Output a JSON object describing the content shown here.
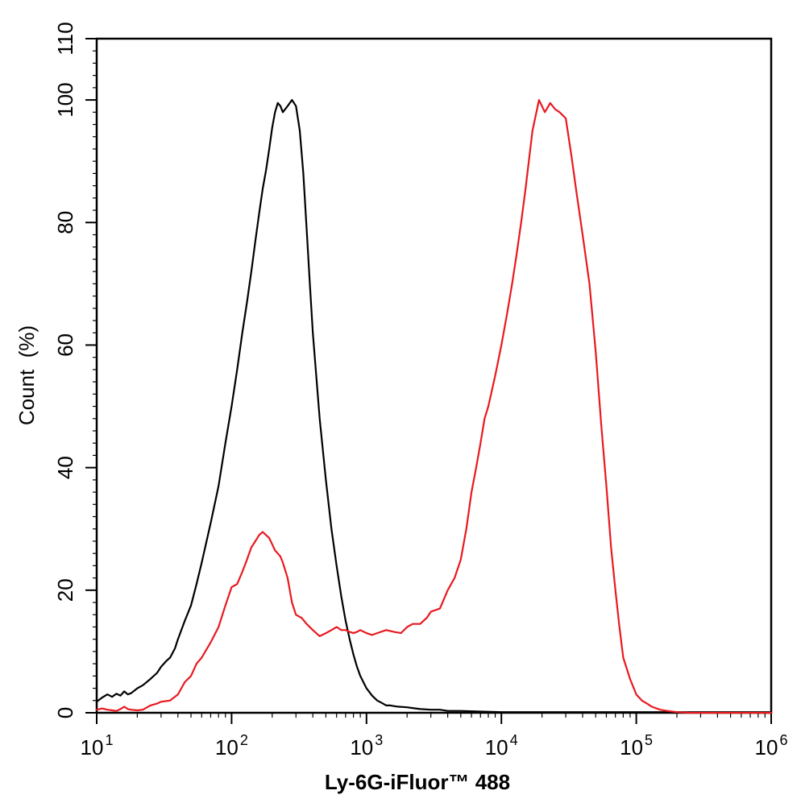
{
  "chart_data": {
    "type": "line",
    "title": "",
    "xlabel": "Ly-6G-iFluor™ 488",
    "ylabel": "Count  (%)",
    "x_scale": "log",
    "xlim": [
      10,
      1000000
    ],
    "ylim": [
      0,
      110
    ],
    "grid": false,
    "legend": "none",
    "y_ticks": [
      "0",
      "20",
      "40",
      "60",
      "80",
      "100",
      "110"
    ],
    "y_tick_values": [
      0,
      20,
      40,
      60,
      80,
      100,
      110
    ],
    "x_ticks": [
      {
        "base": "10",
        "exp": "1",
        "value": 10
      },
      {
        "base": "10",
        "exp": "2",
        "value": 100
      },
      {
        "base": "10",
        "exp": "3",
        "value": 1000
      },
      {
        "base": "10",
        "exp": "4",
        "value": 10000
      },
      {
        "base": "10",
        "exp": "5",
        "value": 100000
      },
      {
        "base": "10",
        "exp": "6",
        "value": 1000000
      }
    ],
    "series": [
      {
        "color": "#000000",
        "x": [
          10,
          11,
          12,
          13,
          14,
          15,
          16,
          17,
          18,
          20,
          22,
          25,
          28,
          30,
          33,
          35,
          38,
          40,
          45,
          50,
          55,
          60,
          70,
          80,
          90,
          100,
          110,
          120,
          130,
          140,
          150,
          160,
          170,
          180,
          190,
          200,
          210,
          220,
          230,
          240,
          260,
          280,
          300,
          320,
          340,
          360,
          380,
          400,
          450,
          500,
          550,
          600,
          650,
          700,
          750,
          800,
          850,
          900,
          1000,
          1100,
          1200,
          1300,
          1400,
          1500,
          1700,
          2000,
          2500,
          3000,
          3500,
          4000,
          5000,
          7000,
          10000,
          100000,
          1000000
        ],
        "y": [
          1.8,
          2.5,
          3.0,
          2.6,
          3.1,
          2.8,
          3.5,
          3.0,
          3.2,
          4.0,
          4.5,
          5.5,
          6.5,
          7.5,
          8.5,
          9.0,
          10.5,
          12.0,
          15.0,
          17.5,
          21.0,
          24.5,
          31.0,
          37.0,
          44.0,
          50.0,
          56.0,
          62.0,
          67.0,
          72.0,
          77.0,
          81.5,
          85.5,
          88.5,
          92.0,
          95.5,
          98.0,
          99.5,
          99.0,
          98.0,
          99.0,
          100.0,
          99.0,
          95.0,
          88.0,
          79.0,
          70.0,
          62.0,
          48.0,
          38.0,
          30.0,
          24.0,
          19.0,
          15.0,
          12.0,
          9.5,
          7.5,
          6.0,
          4.0,
          2.8,
          2.0,
          1.6,
          1.2,
          1.2,
          1.0,
          0.9,
          0.6,
          0.5,
          0.5,
          0.3,
          0.3,
          0.2,
          0.1,
          0.1,
          0.1
        ]
      },
      {
        "color": "#e8191f",
        "x": [
          10,
          11,
          12,
          13,
          14,
          15,
          16,
          17,
          18,
          20,
          22,
          25,
          28,
          30,
          35,
          40,
          45,
          50,
          55,
          60,
          70,
          80,
          90,
          100,
          110,
          120,
          130,
          140,
          150,
          160,
          170,
          180,
          190,
          200,
          210,
          220,
          230,
          240,
          260,
          280,
          300,
          330,
          360,
          400,
          450,
          500,
          550,
          600,
          650,
          700,
          750,
          800,
          850,
          900,
          1000,
          1100,
          1200,
          1400,
          1600,
          1800,
          2000,
          2200,
          2500,
          2800,
          3000,
          3500,
          4000,
          4500,
          5000,
          5500,
          6000,
          6500,
          7000,
          7500,
          8000,
          9000,
          10000,
          11000,
          12000,
          13000,
          14000,
          15000,
          17000,
          19000,
          21000,
          23000,
          25000,
          27000,
          30000,
          33000,
          36000,
          40000,
          45000,
          50000,
          55000,
          60000,
          65000,
          70000,
          75000,
          80000,
          90000,
          100000,
          110000,
          120000,
          130000,
          150000,
          170000,
          200000,
          250000,
          300000,
          1000000
        ],
        "y": [
          0.5,
          0.7,
          0.5,
          0.4,
          0.3,
          0.6,
          1.0,
          0.6,
          0.5,
          0.4,
          0.5,
          1.2,
          1.5,
          1.8,
          2.0,
          3.0,
          5.0,
          6.0,
          8.0,
          9.0,
          11.5,
          14.0,
          17.5,
          20.5,
          21.0,
          23.0,
          25.0,
          27.0,
          28.0,
          29.0,
          29.5,
          29.0,
          28.5,
          27.5,
          26.5,
          26.0,
          25.5,
          24.5,
          22.0,
          18.0,
          16.0,
          15.5,
          14.5,
          13.5,
          12.5,
          13.0,
          13.5,
          14.0,
          13.5,
          13.5,
          13.2,
          13.0,
          13.2,
          13.5,
          13.0,
          12.7,
          13.0,
          13.5,
          13.2,
          13.0,
          14.0,
          14.5,
          14.5,
          15.5,
          16.5,
          17.0,
          20.0,
          22.0,
          25.0,
          30.0,
          36.0,
          40.0,
          44.0,
          48.0,
          50.0,
          55.0,
          60.0,
          65.0,
          70.0,
          75.0,
          80.0,
          85.0,
          95.0,
          100.0,
          98.0,
          99.5,
          98.5,
          98.0,
          97.0,
          91.0,
          85.0,
          78.0,
          70.0,
          59.0,
          47.0,
          37.0,
          27.0,
          20.0,
          14.0,
          9.0,
          5.5,
          3.0,
          2.0,
          1.5,
          1.0,
          0.5,
          0.3,
          0.1,
          0.0,
          0.0,
          0.0
        ]
      }
    ]
  }
}
